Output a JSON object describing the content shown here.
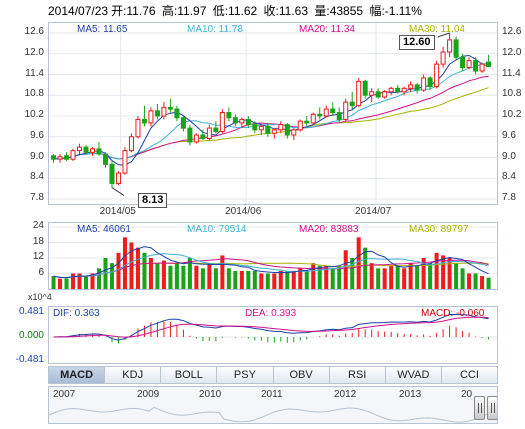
{
  "info": {
    "date": "2014/07/23",
    "open": "开:11.76",
    "high": "高:11.97",
    "low": "低:11.62",
    "close": "收:11.63",
    "volume": "量:43855",
    "change": "幅:-1.11%"
  },
  "price_legend": {
    "ma5": "MA5: 11.65",
    "ma10": "MA10: 11.78",
    "ma20": "MA20: 11.34",
    "ma30": "MA30: 11.04"
  },
  "volume_legend": {
    "ma5": "MA5: 46061",
    "ma10": "MA10: 79514",
    "ma20": "MA20: 83883",
    "ma30": "MA30: 89797"
  },
  "macd_legend": {
    "dif": "DIF: 0.363",
    "dea": "DEA: 0.393",
    "macd": "MACD: -0.060"
  },
  "colors": {
    "up": "#ee1c1c",
    "down": "#1aa31a",
    "ma5": "#1f3fa8",
    "ma10": "#3fb4d8",
    "ma20": "#d0108c",
    "ma30": "#a8b400",
    "dif": "#1f3fa8",
    "dea": "#d0108c"
  },
  "price_axis": [
    "12.6",
    "12.0",
    "11.4",
    "10.8",
    "10.2",
    "9.6",
    "9.0",
    "8.4",
    "7.8"
  ],
  "volume_axis": [
    "24",
    "18",
    "12",
    "6"
  ],
  "volume_unit": "x10^4",
  "macd_axis": [
    "0.481",
    "0.000",
    "-0.481"
  ],
  "x_labels": [
    "2014/05",
    "2014/06",
    "2014/07"
  ],
  "callouts": {
    "max": "12.60",
    "min": "8.13"
  },
  "tabs": [
    "MACD",
    "KDJ",
    "BOLL",
    "PSY",
    "OBV",
    "RSI",
    "WVAD",
    "CCI"
  ],
  "timeline_years": [
    "2007",
    "2009",
    "2010",
    "2011",
    "2012",
    "2013",
    "20"
  ],
  "chart_data": {
    "type": "candlestick",
    "ylim": [
      7.8,
      12.6
    ],
    "candles": [
      {
        "o": 9.05,
        "h": 9.1,
        "l": 8.85,
        "c": 8.95
      },
      {
        "o": 8.95,
        "h": 9.1,
        "l": 8.85,
        "c": 9.02
      },
      {
        "o": 9.05,
        "h": 9.15,
        "l": 8.9,
        "c": 8.95
      },
      {
        "o": 8.95,
        "h": 9.25,
        "l": 8.9,
        "c": 9.2
      },
      {
        "o": 9.2,
        "h": 9.4,
        "l": 9.1,
        "c": 9.3
      },
      {
        "o": 9.3,
        "h": 9.35,
        "l": 9.1,
        "c": 9.15
      },
      {
        "o": 9.15,
        "h": 9.3,
        "l": 9.05,
        "c": 9.25
      },
      {
        "o": 9.25,
        "h": 9.45,
        "l": 9.05,
        "c": 9.1
      },
      {
        "o": 9.1,
        "h": 9.15,
        "l": 8.7,
        "c": 8.8
      },
      {
        "o": 8.8,
        "h": 8.9,
        "l": 8.13,
        "c": 8.25
      },
      {
        "o": 8.25,
        "h": 8.6,
        "l": 8.2,
        "c": 8.55
      },
      {
        "o": 8.55,
        "h": 9.3,
        "l": 8.5,
        "c": 9.2
      },
      {
        "o": 9.2,
        "h": 9.7,
        "l": 9.15,
        "c": 9.6
      },
      {
        "o": 9.6,
        "h": 10.2,
        "l": 9.55,
        "c": 10.1
      },
      {
        "o": 10.1,
        "h": 10.5,
        "l": 9.9,
        "c": 10.0
      },
      {
        "o": 10.0,
        "h": 10.45,
        "l": 9.9,
        "c": 10.35
      },
      {
        "o": 10.35,
        "h": 10.55,
        "l": 10.1,
        "c": 10.2
      },
      {
        "o": 10.2,
        "h": 10.6,
        "l": 10.1,
        "c": 10.45
      },
      {
        "o": 10.45,
        "h": 10.7,
        "l": 10.3,
        "c": 10.4
      },
      {
        "o": 10.4,
        "h": 10.5,
        "l": 10.05,
        "c": 10.15
      },
      {
        "o": 10.15,
        "h": 10.2,
        "l": 9.75,
        "c": 9.85
      },
      {
        "o": 9.85,
        "h": 9.95,
        "l": 9.35,
        "c": 9.45
      },
      {
        "o": 9.45,
        "h": 9.7,
        "l": 9.4,
        "c": 9.65
      },
      {
        "o": 9.65,
        "h": 9.8,
        "l": 9.5,
        "c": 9.55
      },
      {
        "o": 9.55,
        "h": 9.95,
        "l": 9.5,
        "c": 9.85
      },
      {
        "o": 9.85,
        "h": 10.05,
        "l": 9.7,
        "c": 9.75
      },
      {
        "o": 9.75,
        "h": 10.4,
        "l": 9.7,
        "c": 10.3
      },
      {
        "o": 10.3,
        "h": 10.45,
        "l": 10.05,
        "c": 10.15
      },
      {
        "o": 10.15,
        "h": 10.25,
        "l": 9.9,
        "c": 10.0
      },
      {
        "o": 10.0,
        "h": 10.15,
        "l": 9.85,
        "c": 10.1
      },
      {
        "o": 10.1,
        "h": 10.2,
        "l": 9.85,
        "c": 9.95
      },
      {
        "o": 9.95,
        "h": 10.05,
        "l": 9.7,
        "c": 9.8
      },
      {
        "o": 9.8,
        "h": 9.95,
        "l": 9.65,
        "c": 9.9
      },
      {
        "o": 9.9,
        "h": 10.0,
        "l": 9.6,
        "c": 9.7
      },
      {
        "o": 9.7,
        "h": 9.85,
        "l": 9.55,
        "c": 9.8
      },
      {
        "o": 9.8,
        "h": 10.05,
        "l": 9.7,
        "c": 9.95
      },
      {
        "o": 9.95,
        "h": 10.0,
        "l": 9.55,
        "c": 9.65
      },
      {
        "o": 9.65,
        "h": 9.85,
        "l": 9.5,
        "c": 9.8
      },
      {
        "o": 9.8,
        "h": 10.1,
        "l": 9.75,
        "c": 10.05
      },
      {
        "o": 10.05,
        "h": 10.2,
        "l": 9.9,
        "c": 10.0
      },
      {
        "o": 10.0,
        "h": 10.3,
        "l": 9.95,
        "c": 10.25
      },
      {
        "o": 10.25,
        "h": 10.45,
        "l": 10.1,
        "c": 10.2
      },
      {
        "o": 10.2,
        "h": 10.5,
        "l": 10.15,
        "c": 10.4
      },
      {
        "o": 10.4,
        "h": 10.6,
        "l": 10.2,
        "c": 10.3
      },
      {
        "o": 10.3,
        "h": 10.45,
        "l": 10.0,
        "c": 10.1
      },
      {
        "o": 10.1,
        "h": 10.7,
        "l": 10.05,
        "c": 10.6
      },
      {
        "o": 10.6,
        "h": 10.9,
        "l": 10.4,
        "c": 10.5
      },
      {
        "o": 10.5,
        "h": 11.3,
        "l": 10.45,
        "c": 11.2
      },
      {
        "o": 11.2,
        "h": 11.25,
        "l": 10.7,
        "c": 10.8
      },
      {
        "o": 10.8,
        "h": 11.0,
        "l": 10.6,
        "c": 10.9
      },
      {
        "o": 10.9,
        "h": 11.0,
        "l": 10.7,
        "c": 10.75
      },
      {
        "o": 10.75,
        "h": 10.95,
        "l": 10.7,
        "c": 10.9
      },
      {
        "o": 10.9,
        "h": 11.05,
        "l": 10.8,
        "c": 11.0
      },
      {
        "o": 11.0,
        "h": 11.1,
        "l": 10.85,
        "c": 10.9
      },
      {
        "o": 10.9,
        "h": 11.05,
        "l": 10.8,
        "c": 11.0
      },
      {
        "o": 11.0,
        "h": 11.2,
        "l": 10.9,
        "c": 11.1
      },
      {
        "o": 11.1,
        "h": 11.15,
        "l": 10.85,
        "c": 10.95
      },
      {
        "o": 10.95,
        "h": 11.4,
        "l": 10.9,
        "c": 11.3
      },
      {
        "o": 11.3,
        "h": 11.35,
        "l": 10.95,
        "c": 11.05
      },
      {
        "o": 11.05,
        "h": 11.8,
        "l": 11.0,
        "c": 11.7
      },
      {
        "o": 11.7,
        "h": 12.2,
        "l": 11.6,
        "c": 12.05
      },
      {
        "o": 12.05,
        "h": 12.6,
        "l": 11.9,
        "c": 12.4
      },
      {
        "o": 12.4,
        "h": 12.5,
        "l": 11.8,
        "c": 11.9
      },
      {
        "o": 11.9,
        "h": 12.0,
        "l": 11.5,
        "c": 11.6
      },
      {
        "o": 11.6,
        "h": 11.9,
        "l": 11.55,
        "c": 11.8
      },
      {
        "o": 11.8,
        "h": 11.9,
        "l": 11.4,
        "c": 11.5
      },
      {
        "o": 11.5,
        "h": 11.75,
        "l": 11.45,
        "c": 11.7
      },
      {
        "o": 11.76,
        "h": 11.97,
        "l": 11.62,
        "c": 11.63
      }
    ],
    "volume": [
      5,
      4,
      4,
      6,
      6,
      5,
      6,
      8,
      12,
      10,
      14,
      20,
      18,
      16,
      14,
      12,
      10,
      11,
      9,
      10,
      9,
      12,
      9,
      8,
      10,
      8,
      13,
      8,
      7,
      7,
      7,
      7,
      6,
      6,
      6,
      7,
      7,
      7,
      8,
      7,
      10,
      9,
      9,
      8,
      9,
      15,
      12,
      20,
      16,
      10,
      8,
      8,
      9,
      9,
      8,
      10,
      9,
      12,
      10,
      14,
      13,
      12,
      10,
      8,
      6,
      6,
      5,
      4.4
    ]
  }
}
